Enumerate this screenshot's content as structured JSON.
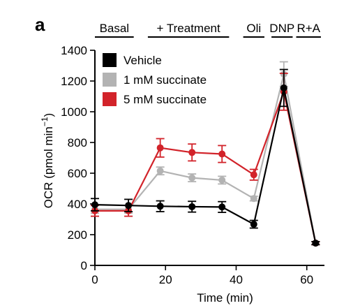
{
  "panel_label": "a",
  "chart_data": {
    "type": "line",
    "xlabel": "Time (min)",
    "ylabel_main": "OCR (pmol min",
    "ylabel_sup": "−1",
    "ylabel_close": ")",
    "xlim": [
      0,
      65
    ],
    "ylim": [
      0,
      1400
    ],
    "xticks": [
      0,
      20,
      40,
      60
    ],
    "yticks": [
      0,
      200,
      400,
      600,
      800,
      1000,
      1200,
      1400
    ],
    "phases": [
      {
        "label": "Basal",
        "start": 0,
        "end": 11
      },
      {
        "label": "+ Treatment",
        "start": 15,
        "end": 38
      },
      {
        "label": "Oli",
        "start": 42,
        "end": 48
      },
      {
        "label": "DNP",
        "start": 50,
        "end": 56
      },
      {
        "label": "R+A",
        "start": 57,
        "end": 64
      }
    ],
    "x": [
      0,
      9.5,
      18.5,
      27.5,
      36,
      45,
      53.5,
      62.5
    ],
    "series": [
      {
        "name": "Vehicle",
        "color": "#000000",
        "values": [
          395,
          390,
          385,
          382,
          380,
          268,
          1155,
          145
        ],
        "errors": [
          40,
          40,
          35,
          35,
          35,
          25,
          120,
          10
        ]
      },
      {
        "name": "1 mM succinate",
        "color": "#b3b3b3",
        "values": [
          365,
          365,
          615,
          570,
          555,
          435,
          1245,
          145
        ],
        "errors": [
          25,
          25,
          25,
          25,
          25,
          15,
          80,
          10
        ]
      },
      {
        "name": "5 mM succinate",
        "color": "#d2232a",
        "values": [
          355,
          355,
          765,
          735,
          725,
          590,
          1130,
          145
        ],
        "errors": [
          35,
          35,
          60,
          55,
          55,
          35,
          120,
          10
        ]
      }
    ],
    "legend_position": "top-left",
    "grid": false
  }
}
